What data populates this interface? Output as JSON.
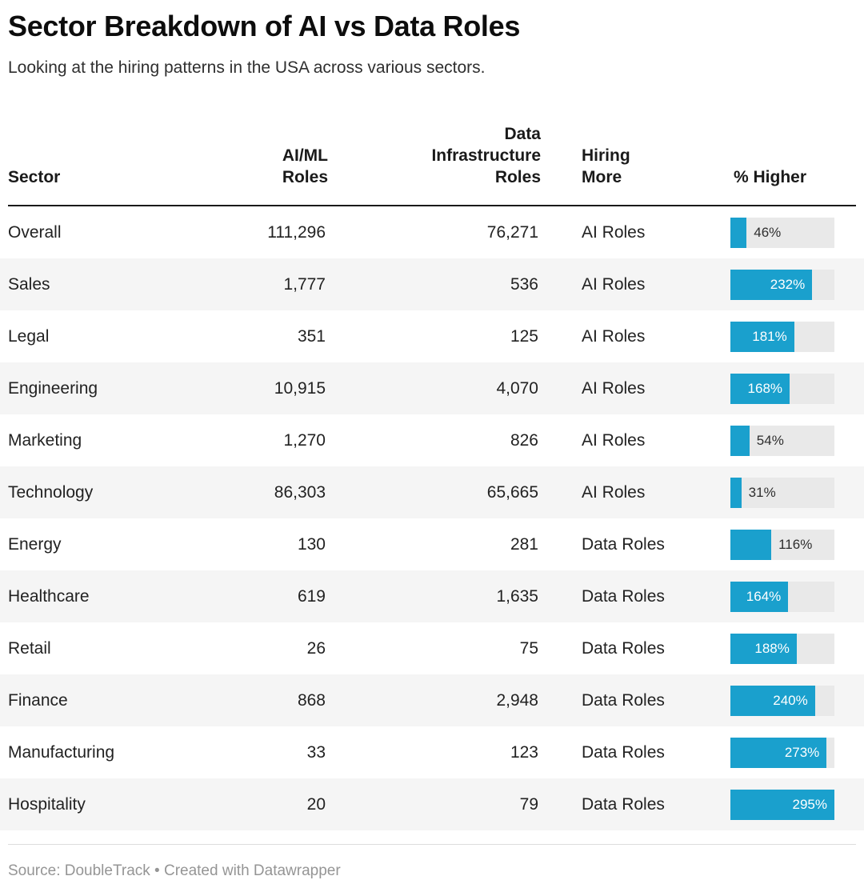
{
  "header": {
    "title": "Sector Breakdown of AI vs Data Roles",
    "subtitle": "Looking at the hiring patterns in the USA across various sectors."
  },
  "table": {
    "columns": [
      {
        "id": "sector",
        "label": "Sector",
        "align": "left"
      },
      {
        "id": "ai_ml",
        "label": "AI/ML\nRoles",
        "align": "right"
      },
      {
        "id": "data_infra",
        "label": "Data\nInfrastructure\nRoles",
        "align": "right"
      },
      {
        "id": "hiring_more",
        "label": "Hiring\nMore",
        "align": "left"
      },
      {
        "id": "pct_higher",
        "label": "% Higher",
        "align": "left"
      }
    ],
    "bar_max": 295,
    "rows": [
      {
        "sector": "Overall",
        "ai_ml": "111,296",
        "data_infra": "76,271",
        "hiring_more": "AI Roles",
        "pct": 46,
        "pct_label": "46%",
        "label_inside": false
      },
      {
        "sector": "Sales",
        "ai_ml": "1,777",
        "data_infra": "536",
        "hiring_more": "AI Roles",
        "pct": 232,
        "pct_label": "232%",
        "label_inside": true
      },
      {
        "sector": "Legal",
        "ai_ml": "351",
        "data_infra": "125",
        "hiring_more": "AI Roles",
        "pct": 181,
        "pct_label": "181%",
        "label_inside": true
      },
      {
        "sector": "Engineering",
        "ai_ml": "10,915",
        "data_infra": "4,070",
        "hiring_more": "AI Roles",
        "pct": 168,
        "pct_label": "168%",
        "label_inside": true
      },
      {
        "sector": "Marketing",
        "ai_ml": "1,270",
        "data_infra": "826",
        "hiring_more": "AI Roles",
        "pct": 54,
        "pct_label": "54%",
        "label_inside": false
      },
      {
        "sector": "Technology",
        "ai_ml": "86,303",
        "data_infra": "65,665",
        "hiring_more": "AI Roles",
        "pct": 31,
        "pct_label": "31%",
        "label_inside": false
      },
      {
        "sector": "Energy",
        "ai_ml": "130",
        "data_infra": "281",
        "hiring_more": "Data Roles",
        "pct": 116,
        "pct_label": "116%",
        "label_inside": false
      },
      {
        "sector": "Healthcare",
        "ai_ml": "619",
        "data_infra": "1,635",
        "hiring_more": "Data Roles",
        "pct": 164,
        "pct_label": "164%",
        "label_inside": true
      },
      {
        "sector": "Retail",
        "ai_ml": "26",
        "data_infra": "75",
        "hiring_more": "Data Roles",
        "pct": 188,
        "pct_label": "188%",
        "label_inside": true
      },
      {
        "sector": "Finance",
        "ai_ml": "868",
        "data_infra": "2,948",
        "hiring_more": "Data Roles",
        "pct": 240,
        "pct_label": "240%",
        "label_inside": true
      },
      {
        "sector": "Manufacturing",
        "ai_ml": "33",
        "data_infra": "123",
        "hiring_more": "Data Roles",
        "pct": 273,
        "pct_label": "273%",
        "label_inside": true
      },
      {
        "sector": "Hospitality",
        "ai_ml": "20",
        "data_infra": "79",
        "hiring_more": "Data Roles",
        "pct": 295,
        "pct_label": "295%",
        "label_inside": true
      }
    ]
  },
  "footer": {
    "source": "Source: DoubleTrack • Created with Datawrapper"
  },
  "colors": {
    "bar": "#1aa0cd",
    "bar_track": "#e9e9e9",
    "zebra_row": "#f5f5f5",
    "header_rule": "#1a1a1a",
    "footer_text": "#959595"
  },
  "chart_data": {
    "type": "table",
    "title": "Sector Breakdown of AI vs Data Roles",
    "subtitle": "Looking at the hiring patterns in the USA across various sectors.",
    "columns": [
      "Sector",
      "AI/ML Roles",
      "Data Infrastructure Roles",
      "Hiring More",
      "% Higher"
    ],
    "bar_column": "% Higher",
    "bar_axis_max": 295,
    "rows": [
      [
        "Overall",
        111296,
        76271,
        "AI Roles",
        46
      ],
      [
        "Sales",
        1777,
        536,
        "AI Roles",
        232
      ],
      [
        "Legal",
        351,
        125,
        "AI Roles",
        181
      ],
      [
        "Engineering",
        10915,
        4070,
        "AI Roles",
        168
      ],
      [
        "Marketing",
        1270,
        826,
        "AI Roles",
        54
      ],
      [
        "Technology",
        86303,
        65665,
        "AI Roles",
        31
      ],
      [
        "Energy",
        130,
        281,
        "Data Roles",
        116
      ],
      [
        "Healthcare",
        619,
        1635,
        "Data Roles",
        164
      ],
      [
        "Retail",
        26,
        75,
        "Data Roles",
        188
      ],
      [
        "Finance",
        868,
        2948,
        "Data Roles",
        240
      ],
      [
        "Manufacturing",
        33,
        123,
        "Data Roles",
        273
      ],
      [
        "Hospitality",
        20,
        79,
        "Data Roles",
        295
      ]
    ],
    "source": "Source: DoubleTrack • Created with Datawrapper"
  }
}
